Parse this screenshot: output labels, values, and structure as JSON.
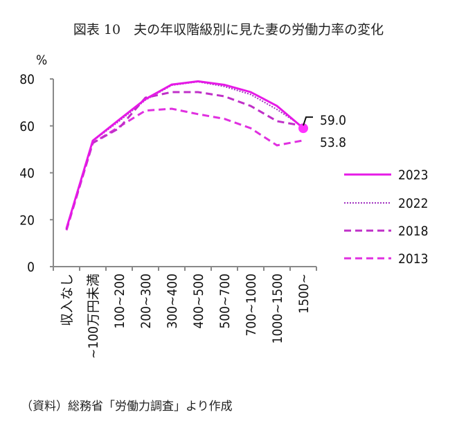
{
  "title": "図表 10　夫の年収階級別に見た妻の労働力率の変化",
  "source": "（資料）総務省「労働力調査」より作成",
  "chart_data": {
    "type": "line",
    "title": "図表 10　夫の年収階級別に見た妻の労働力率の変化",
    "ylabel": "%",
    "xlabel": "",
    "ylim": [
      0,
      80
    ],
    "yticks": [
      0,
      20,
      40,
      60,
      80
    ],
    "grid": false,
    "legend": "right",
    "categories": [
      "収入なし",
      "~100万円未満",
      "100~200",
      "200~300",
      "300~400",
      "400~500",
      "500~700",
      "700~1000",
      "1000~1500",
      "1500~"
    ],
    "series": [
      {
        "name": "2023",
        "style": "solid",
        "color": "#e619e6",
        "values": [
          16.3,
          53.7,
          62.6,
          71.4,
          77.6,
          79.0,
          77.5,
          74.4,
          68.5,
          59.0
        ]
      },
      {
        "name": "2022",
        "style": "dotted",
        "color": "#a030c0",
        "values": [
          16.0,
          53.5,
          62.0,
          71.0,
          77.3,
          78.8,
          76.8,
          73.4,
          67.0,
          59.5
        ]
      },
      {
        "name": "2018",
        "style": "dashed",
        "color": "#c030c8",
        "values": [
          16.0,
          52.7,
          59.0,
          72.0,
          74.4,
          74.4,
          72.6,
          68.5,
          62.0,
          60.0
        ]
      },
      {
        "name": "2013",
        "style": "dashed",
        "color": "#e030e0",
        "values": [
          15.5,
          52.7,
          59.6,
          66.5,
          67.3,
          65.0,
          63.0,
          59.0,
          51.7,
          53.8
        ]
      }
    ],
    "annotations": [
      "59.0",
      "53.8"
    ]
  }
}
